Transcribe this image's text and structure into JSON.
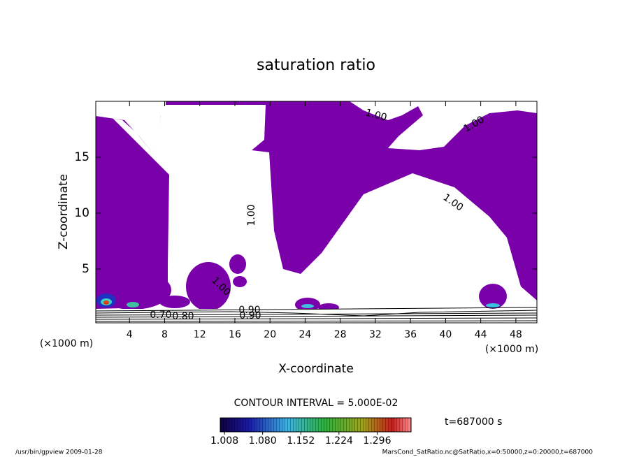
{
  "chart_data": {
    "type": "contour",
    "title": "saturation ratio",
    "x_label": "X-coordinate",
    "y_label": "Z-coordinate",
    "x_unit": "(×1000 m)",
    "y_unit": "(×1000 m)",
    "xlim": [
      0,
      50
    ],
    "ylim": [
      0,
      20
    ],
    "xticks": [
      4,
      8,
      12,
      16,
      20,
      24,
      28,
      32,
      36,
      40,
      44,
      48
    ],
    "yticks": [
      5,
      10,
      15
    ],
    "fill_color": "#7a00aa",
    "contour_labels": [
      "1.00",
      "1.00",
      "1.00",
      "1.00",
      "1.00",
      "0.90",
      "0.80",
      "0.90",
      "0.70"
    ],
    "contour_interval": "CONTOUR INTERVAL = 5.000E-02",
    "clim": [
      1.0,
      1.36
    ],
    "colorbar_ticks": [
      1.008,
      {
        "value": 1.08,
        "label": "1.080"
      },
      1.152,
      1.224,
      1.296
    ],
    "time_label": "t=687000 s",
    "footer_left": "/usr/bin/gpview  2009-01-28",
    "footer_right": "MarsCond_SatRatio.nc@SatRatio,x=0:50000,z=0:20000,t=687000"
  }
}
